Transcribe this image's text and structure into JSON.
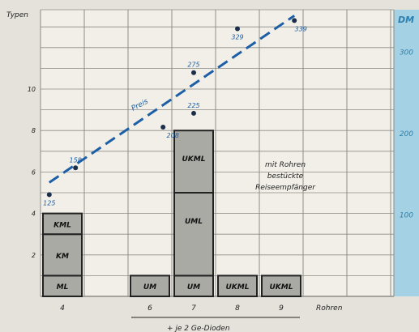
{
  "chart_data": {
    "type": "bar",
    "title": "",
    "ylabel_left": "Typen",
    "ylabel_right": "DM",
    "xlabel": "Rohren",
    "footnote": "+ je 2 Ge-Dioden",
    "annotation": "mit Rohren bestückte Reiseempfänger",
    "trend_label": "Preis",
    "left_axis": {
      "ticks": [
        "2",
        "4",
        "6",
        "8",
        "10"
      ],
      "ylim": [
        0,
        12
      ]
    },
    "right_axis": {
      "ticks": [
        "100",
        "200",
        "300"
      ],
      "ylim": [
        0,
        340
      ]
    },
    "categories": [
      "4",
      "6",
      "7",
      "8",
      "9"
    ],
    "grid": true,
    "stacks": [
      {
        "category": "4",
        "segments": [
          {
            "label": "ML",
            "value": 1
          },
          {
            "label": "KM",
            "value": 2
          },
          {
            "label": "KML",
            "value": 1
          }
        ]
      },
      {
        "category": "6",
        "segments": [
          {
            "label": "UM",
            "value": 1
          }
        ]
      },
      {
        "category": "7",
        "segments": [
          {
            "label": "UM",
            "value": 1
          },
          {
            "label": "UML",
            "value": 4
          },
          {
            "label": "UKML",
            "value": 3
          }
        ]
      },
      {
        "category": "8",
        "segments": [
          {
            "label": "UKML",
            "value": 1
          }
        ]
      },
      {
        "category": "9",
        "segments": [
          {
            "label": "UKML",
            "value": 1
          }
        ]
      }
    ],
    "price_points": [
      {
        "category": "4",
        "offset": -0.3,
        "value": 125,
        "label": "125"
      },
      {
        "category": "4",
        "offset": 0.3,
        "value": 158,
        "label": "158"
      },
      {
        "category": "6",
        "offset": 0.3,
        "value": 208,
        "label": "208"
      },
      {
        "category": "7",
        "offset": 0.0,
        "value": 225,
        "label": "225"
      },
      {
        "category": "7",
        "offset": 0.0,
        "value": 275,
        "label": "275"
      },
      {
        "category": "8",
        "offset": 0.0,
        "value": 329,
        "label": "329"
      },
      {
        "category": "9",
        "offset": 0.3,
        "value": 339,
        "label": "339"
      }
    ],
    "trend_line": {
      "from": {
        "category": "4",
        "offset": -0.3,
        "value": 140
      },
      "to": {
        "category": "9",
        "offset": 0.3,
        "value": 345
      }
    },
    "colors": {
      "bar_fill": "#a9aaa4",
      "bar_border": "#222222",
      "trend": "#1d5fa6",
      "grid": "#8d8c86",
      "right_band": "#a4d2e4"
    }
  }
}
